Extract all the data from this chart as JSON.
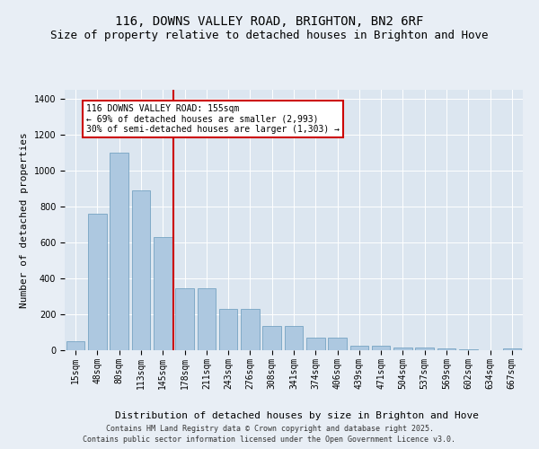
{
  "title": "116, DOWNS VALLEY ROAD, BRIGHTON, BN2 6RF",
  "subtitle": "Size of property relative to detached houses in Brighton and Hove",
  "xlabel": "Distribution of detached houses by size in Brighton and Hove",
  "ylabel": "Number of detached properties",
  "categories": [
    "15sqm",
    "48sqm",
    "80sqm",
    "113sqm",
    "145sqm",
    "178sqm",
    "211sqm",
    "243sqm",
    "276sqm",
    "308sqm",
    "341sqm",
    "374sqm",
    "406sqm",
    "439sqm",
    "471sqm",
    "504sqm",
    "537sqm",
    "569sqm",
    "602sqm",
    "634sqm",
    "667sqm"
  ],
  "values": [
    50,
    760,
    1100,
    890,
    630,
    345,
    345,
    230,
    230,
    135,
    135,
    70,
    70,
    27,
    27,
    17,
    17,
    10,
    5,
    2,
    12
  ],
  "bar_color": "#adc8e0",
  "bar_edge_color": "#6699bb",
  "vline_color": "#cc0000",
  "annotation_text": "116 DOWNS VALLEY ROAD: 155sqm\n← 69% of detached houses are smaller (2,993)\n30% of semi-detached houses are larger (1,303) →",
  "annotation_box_color": "#ffffff",
  "annotation_box_edge": "#cc0000",
  "ylim": [
    0,
    1450
  ],
  "yticks": [
    0,
    200,
    400,
    600,
    800,
    1000,
    1200,
    1400
  ],
  "bg_color": "#e8eef5",
  "plot_bg_color": "#dce6f0",
  "footer": "Contains HM Land Registry data © Crown copyright and database right 2025.\nContains public sector information licensed under the Open Government Licence v3.0.",
  "title_fontsize": 10,
  "subtitle_fontsize": 9,
  "axis_label_fontsize": 8,
  "tick_fontsize": 7,
  "footer_fontsize": 6,
  "annotation_fontsize": 7
}
